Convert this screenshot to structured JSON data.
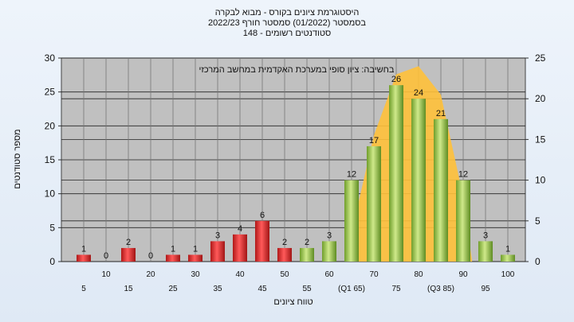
{
  "header": {
    "line1": "היסטוגרמת ציונים בקורס - מבוא לבקרה",
    "line2": "בסמסטר  (01/2022)  סמסטר חורף 2022/23",
    "line3": "סטודנטים רשומים - 148"
  },
  "chart_data": {
    "type": "bar",
    "annotation": "בחשיבה: ציון סופי במערכת האקדמית במחשב המרכזי",
    "ylabel": "מספר סטודנטים",
    "xlabel": "טווח ציונים",
    "ylim": [
      0,
      30
    ],
    "y2lim": [
      0,
      25
    ],
    "yticks": [
      0,
      5,
      10,
      15,
      20,
      25,
      30
    ],
    "y2ticks": [
      0,
      5,
      10,
      15,
      20,
      25
    ],
    "x_tick_labels": [
      {
        "x": 5,
        "label": "5",
        "row": 2
      },
      {
        "x": 10,
        "label": "10",
        "row": 1
      },
      {
        "x": 15,
        "label": "15",
        "row": 2
      },
      {
        "x": 20,
        "label": "20",
        "row": 1
      },
      {
        "x": 25,
        "label": "25",
        "row": 2
      },
      {
        "x": 30,
        "label": "30",
        "row": 1
      },
      {
        "x": 35,
        "label": "35",
        "row": 2
      },
      {
        "x": 40,
        "label": "40",
        "row": 1
      },
      {
        "x": 45,
        "label": "45",
        "row": 2
      },
      {
        "x": 50,
        "label": "50",
        "row": 1
      },
      {
        "x": 55,
        "label": "55",
        "row": 2
      },
      {
        "x": 60,
        "label": "60",
        "row": 1
      },
      {
        "x": 65,
        "label": "(Q1 65)",
        "row": 2
      },
      {
        "x": 70,
        "label": "70",
        "row": 1
      },
      {
        "x": 75,
        "label": "75",
        "row": 2
      },
      {
        "x": 80,
        "label": "80",
        "row": 1
      },
      {
        "x": 85,
        "label": "(Q3 85)",
        "row": 2
      },
      {
        "x": 90,
        "label": "90",
        "row": 1
      },
      {
        "x": 95,
        "label": "95",
        "row": 2
      },
      {
        "x": 100,
        "label": "100",
        "row": 1
      }
    ],
    "bars": [
      {
        "x": 5,
        "value": 1,
        "color": "red"
      },
      {
        "x": 10,
        "value": 0,
        "color": "red"
      },
      {
        "x": 15,
        "value": 2,
        "color": "red"
      },
      {
        "x": 20,
        "value": 0,
        "color": "red"
      },
      {
        "x": 25,
        "value": 1,
        "color": "red"
      },
      {
        "x": 30,
        "value": 1,
        "color": "red"
      },
      {
        "x": 35,
        "value": 3,
        "color": "red"
      },
      {
        "x": 40,
        "value": 4,
        "color": "red"
      },
      {
        "x": 45,
        "value": 6,
        "color": "red"
      },
      {
        "x": 50,
        "value": 2,
        "color": "red"
      },
      {
        "x": 55,
        "value": 2,
        "color": "green"
      },
      {
        "x": 60,
        "value": 3,
        "color": "green"
      },
      {
        "x": 65,
        "value": 12,
        "color": "green"
      },
      {
        "x": 70,
        "value": 17,
        "color": "green"
      },
      {
        "x": 75,
        "value": 26,
        "color": "green"
      },
      {
        "x": 80,
        "value": 24,
        "color": "green"
      },
      {
        "x": 85,
        "value": 21,
        "color": "green"
      },
      {
        "x": 90,
        "value": 12,
        "color": "green"
      },
      {
        "x": 95,
        "value": 3,
        "color": "green"
      },
      {
        "x": 100,
        "value": 1,
        "color": "green"
      }
    ],
    "area": [
      {
        "x": 63.5,
        "y": 0
      },
      {
        "x": 70,
        "y": 15.5
      },
      {
        "x": 75,
        "y": 23
      },
      {
        "x": 80,
        "y": 24
      },
      {
        "x": 85,
        "y": 20.5
      },
      {
        "x": 90,
        "y": 8
      },
      {
        "x": 92,
        "y": 0
      }
    ],
    "colors": {
      "red_bar": "#d42a2a",
      "green_bar": "#8fbf3e",
      "area_fill": "#ffc13a",
      "plot_bg": "#c0c0c0",
      "label_color": "#111111"
    },
    "grid": true
  }
}
